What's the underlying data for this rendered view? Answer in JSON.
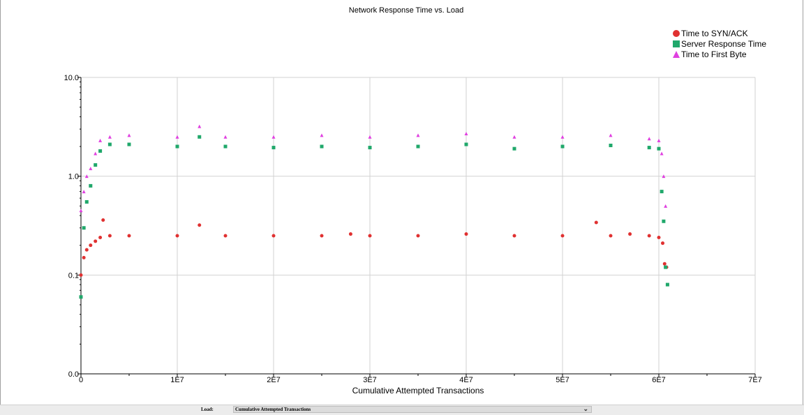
{
  "chart_data": {
    "type": "scatter",
    "title": "Network Response Time vs. Load",
    "xlabel": "Cumulative Attempted Transactions",
    "ylabel": "",
    "xlim": [
      0,
      70000000
    ],
    "ylim": [
      0.01,
      10
    ],
    "y_scale": "log",
    "x_ticks": [
      0,
      10000000,
      20000000,
      30000000,
      40000000,
      50000000,
      60000000,
      70000000
    ],
    "x_tick_labels": [
      "0",
      "1E7",
      "2E7",
      "3E7",
      "4E7",
      "5E7",
      "6E7",
      "7E7"
    ],
    "y_ticks": [
      0.01,
      0.1,
      1,
      10
    ],
    "y_tick_labels": [
      "0.0",
      "0.1",
      "1.0",
      "10.0"
    ],
    "grid": true,
    "legend_position": "top-right",
    "series": [
      {
        "name": "Time to SYN/ACK",
        "marker": "circle",
        "color": "#e03131",
        "x": [
          0,
          300000,
          600000,
          1000000,
          1500000,
          2000000,
          2300000,
          3000000,
          5000000,
          10000000,
          12300000,
          15000000,
          20000000,
          25000000,
          28000000,
          30000000,
          35000000,
          40000000,
          45000000,
          50000000,
          53500000,
          55000000,
          57000000,
          59000000,
          60000000,
          60400000,
          60600000,
          60800000
        ],
        "y": [
          0.1,
          0.15,
          0.18,
          0.2,
          0.22,
          0.24,
          0.36,
          0.25,
          0.25,
          0.25,
          0.32,
          0.25,
          0.25,
          0.25,
          0.26,
          0.25,
          0.25,
          0.26,
          0.25,
          0.25,
          0.34,
          0.25,
          0.26,
          0.25,
          0.24,
          0.21,
          0.13,
          0.12
        ]
      },
      {
        "name": "Server Response Time",
        "marker": "square",
        "color": "#20a86b",
        "x": [
          0,
          300000,
          600000,
          1000000,
          1500000,
          2000000,
          3000000,
          5000000,
          10000000,
          12300000,
          15000000,
          20000000,
          25000000,
          30000000,
          35000000,
          40000000,
          45000000,
          50000000,
          55000000,
          59000000,
          60000000,
          60300000,
          60500000,
          60700000,
          60900000
        ],
        "y": [
          0.06,
          0.3,
          0.55,
          0.8,
          1.3,
          1.8,
          2.1,
          2.1,
          2.0,
          2.5,
          2.0,
          1.95,
          2.0,
          1.95,
          2.0,
          2.1,
          1.9,
          2.0,
          2.05,
          1.95,
          1.9,
          0.7,
          0.35,
          0.12,
          0.08
        ]
      },
      {
        "name": "Time to First Byte",
        "marker": "triangle",
        "color": "#e040e0",
        "x": [
          0,
          300000,
          600000,
          1000000,
          1500000,
          2000000,
          3000000,
          5000000,
          10000000,
          12300000,
          15000000,
          20000000,
          25000000,
          30000000,
          35000000,
          40000000,
          45000000,
          50000000,
          55000000,
          59000000,
          60000000,
          60300000,
          60500000,
          60700000
        ],
        "y": [
          0.45,
          0.7,
          1.0,
          1.2,
          1.7,
          2.3,
          2.5,
          2.6,
          2.5,
          3.2,
          2.5,
          2.5,
          2.6,
          2.5,
          2.6,
          2.7,
          2.5,
          2.5,
          2.6,
          2.4,
          2.3,
          1.7,
          1.0,
          0.5
        ]
      }
    ]
  },
  "footer": {
    "load_label": "Load:",
    "load_value": "Cumulative Attempted Transactions"
  }
}
